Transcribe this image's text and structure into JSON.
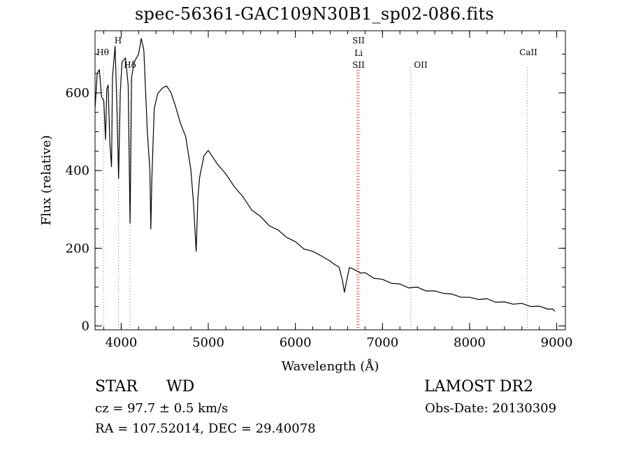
{
  "chart_data": {
    "type": "line",
    "title": "spec-56361-GAC109N30B1_sp02-086.fits",
    "xlabel": "Wavelength (Å)",
    "ylabel": "Flux (relative)",
    "xlim": [
      3700,
      9100
    ],
    "ylim": [
      -10,
      760
    ],
    "x_ticks": [
      4000,
      5000,
      6000,
      7000,
      8000,
      9000
    ],
    "y_ticks": [
      0,
      200,
      400,
      600
    ],
    "grid": false,
    "series": [
      {
        "x": [
          3700,
          3725,
          3750,
          3775,
          3800,
          3820,
          3835,
          3850,
          3870,
          3889,
          3900,
          3930,
          3950,
          3970,
          3990,
          4010,
          4050,
          4080,
          4102,
          4120,
          4150,
          4200,
          4230,
          4260,
          4300,
          4330,
          4340,
          4352,
          4380,
          4420,
          4470,
          4520,
          4570,
          4620,
          4680,
          4740,
          4800,
          4830,
          4861,
          4880,
          4900,
          4950,
          5000,
          5100,
          5200,
          5300,
          5400,
          5500,
          5600,
          5700,
          5800,
          5900,
          6000,
          6100,
          6200,
          6300,
          6400,
          6450,
          6500,
          6540,
          6563,
          6590,
          6620,
          6650,
          6700,
          6750,
          6800,
          6900,
          7000,
          7100,
          7200,
          7300,
          7400,
          7500,
          7600,
          7700,
          7800,
          7900,
          8000,
          8100,
          8200,
          8300,
          8400,
          8500,
          8600,
          8700,
          8800,
          8900,
          8950,
          8980
        ],
        "y": [
          560,
          650,
          660,
          590,
          580,
          480,
          610,
          620,
          470,
          410,
          640,
          720,
          570,
          380,
          600,
          680,
          690,
          620,
          265,
          640,
          680,
          700,
          740,
          710,
          500,
          400,
          250,
          380,
          560,
          600,
          610,
          620,
          600,
          570,
          520,
          490,
          400,
          320,
          190,
          330,
          380,
          440,
          450,
          420,
          390,
          360,
          330,
          300,
          280,
          260,
          245,
          230,
          215,
          200,
          190,
          182,
          165,
          160,
          150,
          120,
          85,
          120,
          148,
          150,
          140,
          138,
          135,
          125,
          118,
          112,
          106,
          100,
          98,
          92,
          88,
          86,
          80,
          76,
          72,
          70,
          68,
          63,
          60,
          58,
          56,
          52,
          49,
          45,
          42,
          38
        ]
      }
    ],
    "lines": [
      {
        "label": "Hθ",
        "x": 3798,
        "color": "#808080"
      },
      {
        "label": "H",
        "x": 3970,
        "color": "#808080"
      },
      {
        "label": "Hδ",
        "x": 4102,
        "color": "#808080"
      },
      {
        "label": "SII",
        "x": 6716,
        "color": "#ff0000"
      },
      {
        "label": "Li",
        "x": 6708,
        "color": "#ff0000"
      },
      {
        "label": "SII",
        "x": 6731,
        "color": "#ff0000"
      },
      {
        "label": "OII",
        "x": 7325,
        "color": "#808080"
      },
      {
        "label": "CaII",
        "x": 8662,
        "color": "#808080"
      }
    ]
  },
  "info": {
    "class_label": "STAR",
    "subclass_label": "WD",
    "survey_label": "LAMOST DR2",
    "cz_text": "cz = 97.7 ± 0.5 km/s",
    "obsdate_text": "Obs-Date: 20130309",
    "radec_text": "RA = 107.52014, DEC =  29.40078"
  }
}
